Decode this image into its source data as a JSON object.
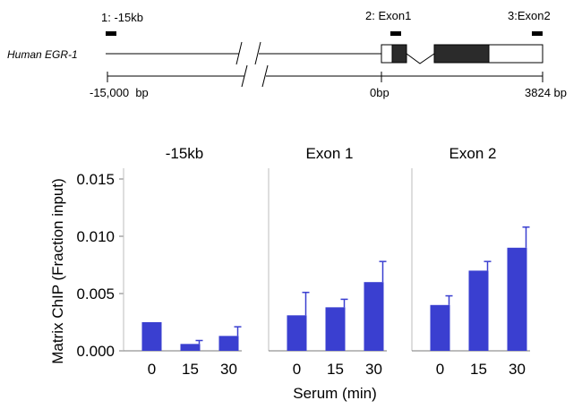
{
  "gene_map": {
    "gene_name": "Human EGR-1",
    "regions": [
      {
        "label": "1: -15kb"
      },
      {
        "label": "2: Exon1"
      },
      {
        "label": "3:Exon2"
      }
    ],
    "scale_labels": {
      "left": "-15,000  bp",
      "zero": "0bp",
      "right": "3824 bp"
    }
  },
  "chart_data": {
    "type": "bar",
    "ylabel": "Matrix ChIP (Fraction input)",
    "xlabel": "Serum (min)",
    "ylim": [
      0,
      0.015
    ],
    "yticks": [
      0.0,
      0.005,
      0.01,
      0.015
    ],
    "ytick_labels": [
      "0.000",
      "0.005",
      "0.010",
      "0.015"
    ],
    "bar_color": "#3a3fd0",
    "panels": [
      {
        "title": "-15kb",
        "categories": [
          "0",
          "15",
          "30"
        ],
        "values": [
          0.0025,
          0.0006,
          0.0013
        ],
        "errors": [
          0.0,
          0.0003,
          0.0008
        ]
      },
      {
        "title": "Exon 1",
        "categories": [
          "0",
          "15",
          "30"
        ],
        "values": [
          0.0031,
          0.0038,
          0.006
        ],
        "errors": [
          0.002,
          0.0007,
          0.0018
        ]
      },
      {
        "title": "Exon 2",
        "categories": [
          "0",
          "15",
          "30"
        ],
        "values": [
          0.004,
          0.007,
          0.009
        ],
        "errors": [
          0.0008,
          0.0008,
          0.0018
        ]
      }
    ]
  }
}
